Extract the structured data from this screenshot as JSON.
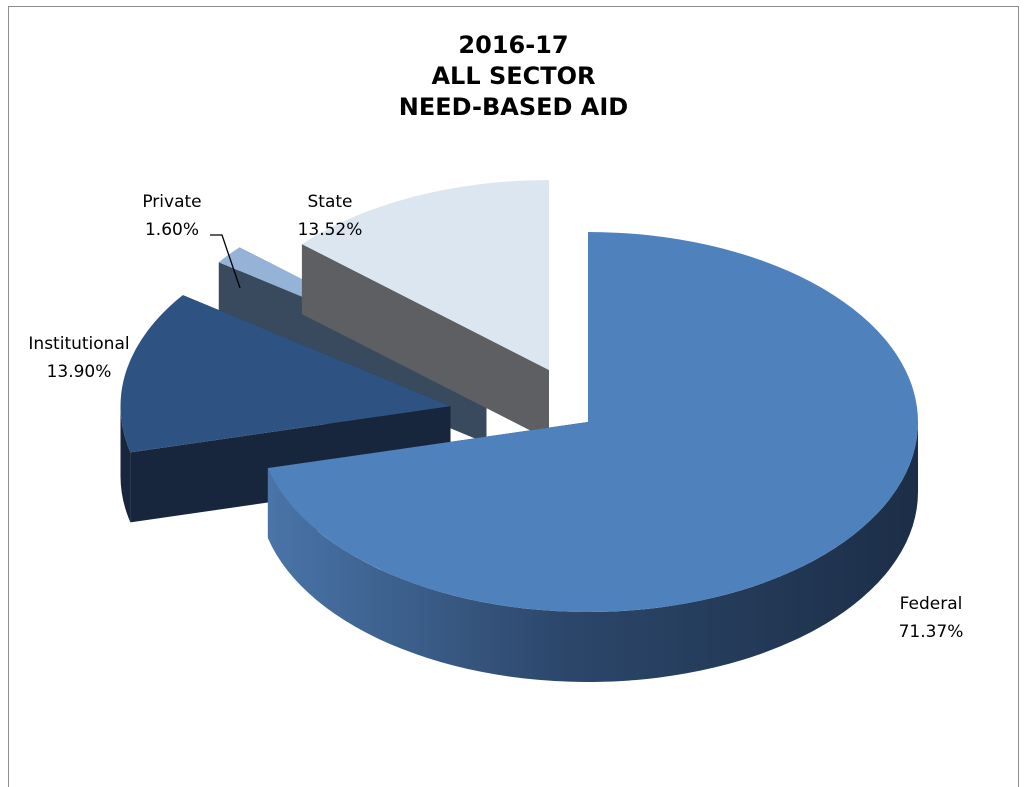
{
  "chart_data": {
    "type": "pie",
    "title_lines": [
      "2016-17",
      "ALL SECTOR",
      "NEED-BASED AID"
    ],
    "slices": [
      {
        "label": "Federal",
        "value": 71.37,
        "display": "71.37%",
        "color": "#4f81bd"
      },
      {
        "label": "Institutional",
        "value": 13.9,
        "display": "13.90%",
        "color": "#2e5382"
      },
      {
        "label": "Private",
        "value": 1.6,
        "display": "1.60%",
        "color": "#95b3d7"
      },
      {
        "label": "State",
        "value": 13.52,
        "display": "13.52%",
        "color": "#dce6f1"
      }
    ],
    "style": "3d-exploded",
    "legend": "none"
  }
}
